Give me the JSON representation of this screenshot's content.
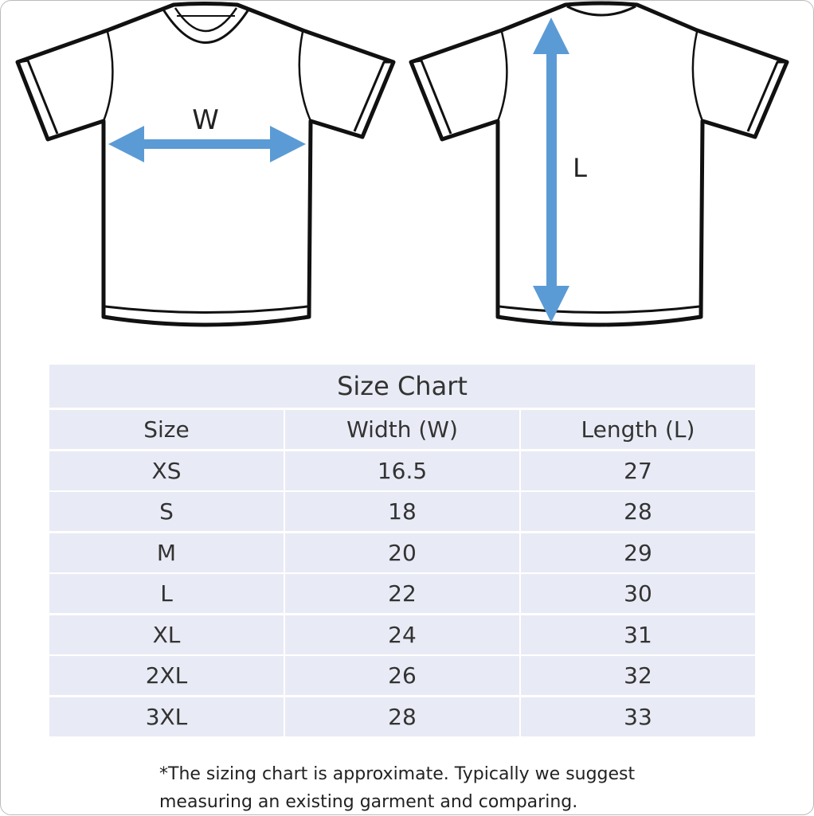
{
  "diagram": {
    "width_label": "W",
    "length_label": "L",
    "arrow_color": "#5b9bd5"
  },
  "table": {
    "title": "Size Chart",
    "headers": [
      "Size",
      "Width (W)",
      "Length (L)"
    ],
    "rows": [
      [
        "XS",
        "16.5",
        "27"
      ],
      [
        "S",
        "18",
        "28"
      ],
      [
        "M",
        "20",
        "29"
      ],
      [
        "L",
        "22",
        "30"
      ],
      [
        "XL",
        "24",
        "31"
      ],
      [
        "2XL",
        "26",
        "32"
      ],
      [
        "3XL",
        "28",
        "33"
      ]
    ]
  },
  "note": {
    "line1": "*The sizing chart is approximate. Typically we suggest",
    "line2": "measuring an existing garment and comparing."
  }
}
